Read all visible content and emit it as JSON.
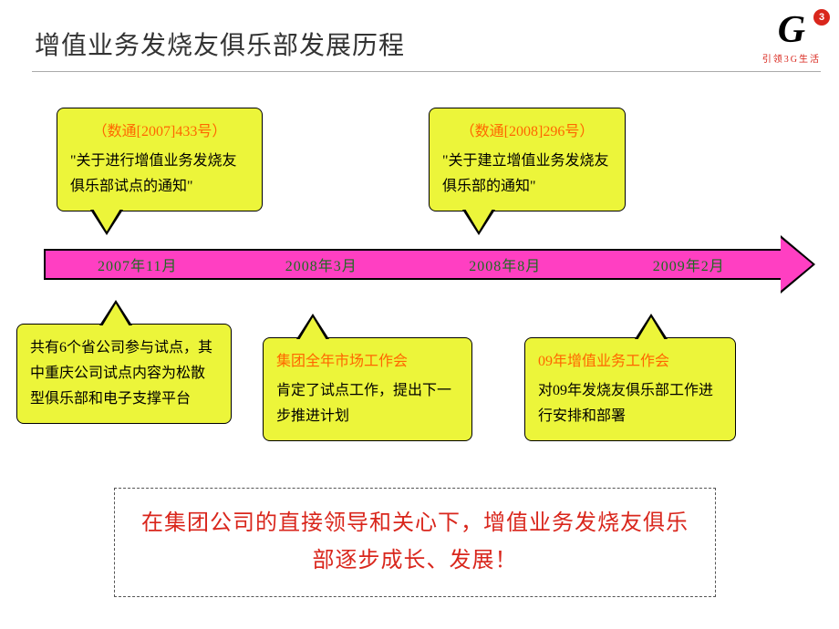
{
  "colors": {
    "callout_bg": "#ecf53a",
    "arrow_fill": "#ff3fc2",
    "milestone_text": "#1d6b1f",
    "ref_text": "#ff6600",
    "summary_text": "#d9261c",
    "logo_red": "#d9261c"
  },
  "title": "增值业务发烧友俱乐部发展历程",
  "logo": {
    "letter": "G",
    "badge": "3",
    "sub": "引领3G生活"
  },
  "milestones": [
    "2007年11月",
    "2008年3月",
    "2008年8月",
    "2009年2月"
  ],
  "callouts": {
    "top_left": {
      "ref": "（数通[2007]433号）",
      "text": "\"关于进行增值业务发烧友俱乐部试点的通知\""
    },
    "top_right": {
      "ref": "（数通[2008]296号）",
      "text": "\"关于建立增值业务发烧友俱乐部的通知\""
    },
    "bot_1": {
      "text": "共有6个省公司参与试点，其中重庆公司试点内容为松散型俱乐部和电子支撑平台"
    },
    "bot_2": {
      "ref": "集团全年市场工作会",
      "text": "肯定了试点工作，提出下一步推进计划"
    },
    "bot_3": {
      "ref": "09年增值业务工作会",
      "text": "对09年发烧友俱乐部工作进行安排和部署"
    }
  },
  "summary": "在集团公司的直接领导和关心下，增值业务发烧友俱乐部逐步成长、发展！"
}
